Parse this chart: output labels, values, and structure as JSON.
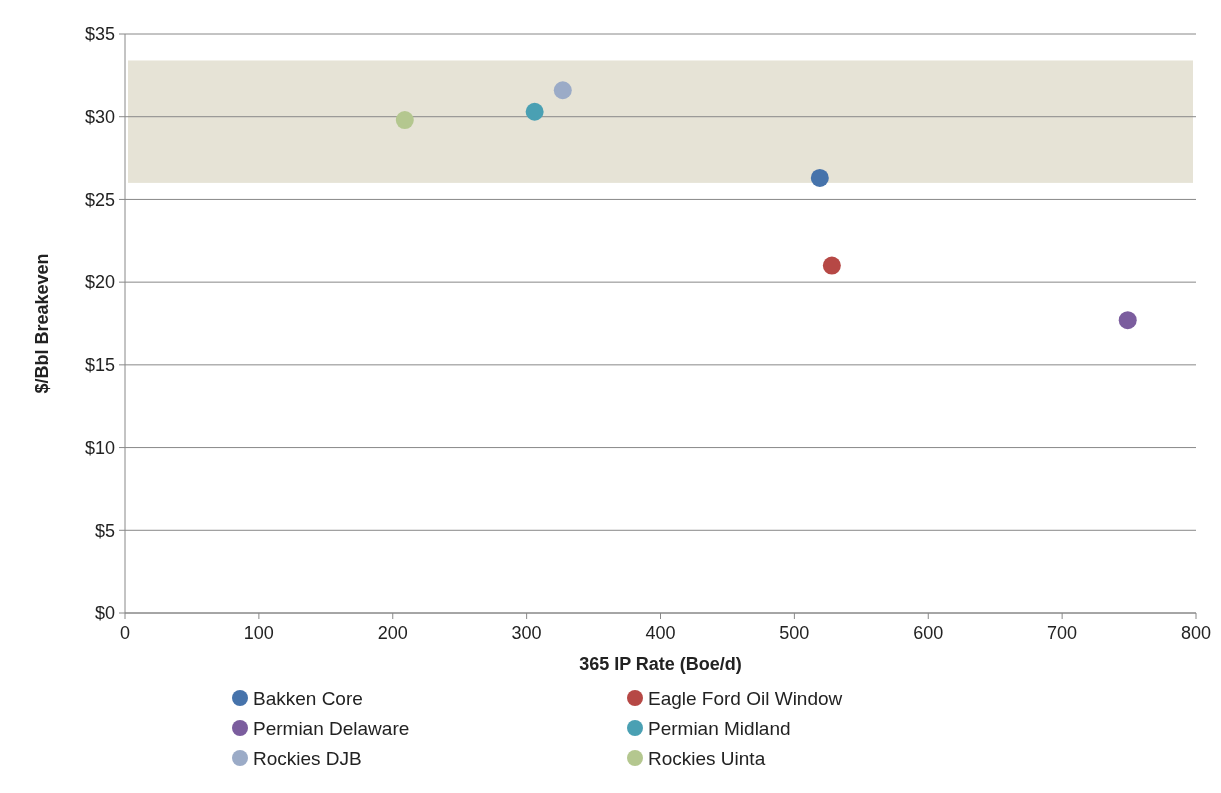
{
  "chart_data": {
    "type": "scatter",
    "xlabel": "365 IP Rate (Boe/d)",
    "ylabel": "$/Bbl Breakeven",
    "xlim": [
      0,
      800
    ],
    "xticks": [
      0,
      100,
      200,
      300,
      400,
      500,
      600,
      700,
      800
    ],
    "ylim": [
      0,
      35
    ],
    "yticks": [
      {
        "value": 0,
        "label": "$0"
      },
      {
        "value": 5,
        "label": "$5"
      },
      {
        "value": 10,
        "label": "$10"
      },
      {
        "value": 15,
        "label": "$15"
      },
      {
        "value": 20,
        "label": "$20"
      },
      {
        "value": 25,
        "label": "$25"
      },
      {
        "value": 30,
        "label": "$30"
      },
      {
        "value": 35,
        "label": "$35"
      }
    ],
    "grid": "y",
    "legend": "bottom",
    "marker": "circle",
    "bands": [
      {
        "axis": "y",
        "from": 26,
        "to": 33.4,
        "color": "#e6e3d6"
      }
    ],
    "series": [
      {
        "name": "Bakken Core",
        "color": "#4673ab",
        "x": [
          519
        ],
        "values": [
          26.3
        ]
      },
      {
        "name": "Eagle Ford Oil Window",
        "color": "#b64845",
        "x": [
          528
        ],
        "values": [
          21.0
        ]
      },
      {
        "name": "Permian Delaware",
        "color": "#7b5d9e",
        "x": [
          749
        ],
        "values": [
          17.7
        ]
      },
      {
        "name": "Permian Midland",
        "color": "#4aa0b3",
        "x": [
          306
        ],
        "values": [
          30.3
        ]
      },
      {
        "name": "Rockies DJB",
        "color": "#9babc7",
        "x": [
          327
        ],
        "values": [
          31.6
        ]
      },
      {
        "name": "Rockies Uinta",
        "color": "#b4c78f",
        "x": [
          209
        ],
        "values": [
          29.8
        ]
      }
    ]
  }
}
